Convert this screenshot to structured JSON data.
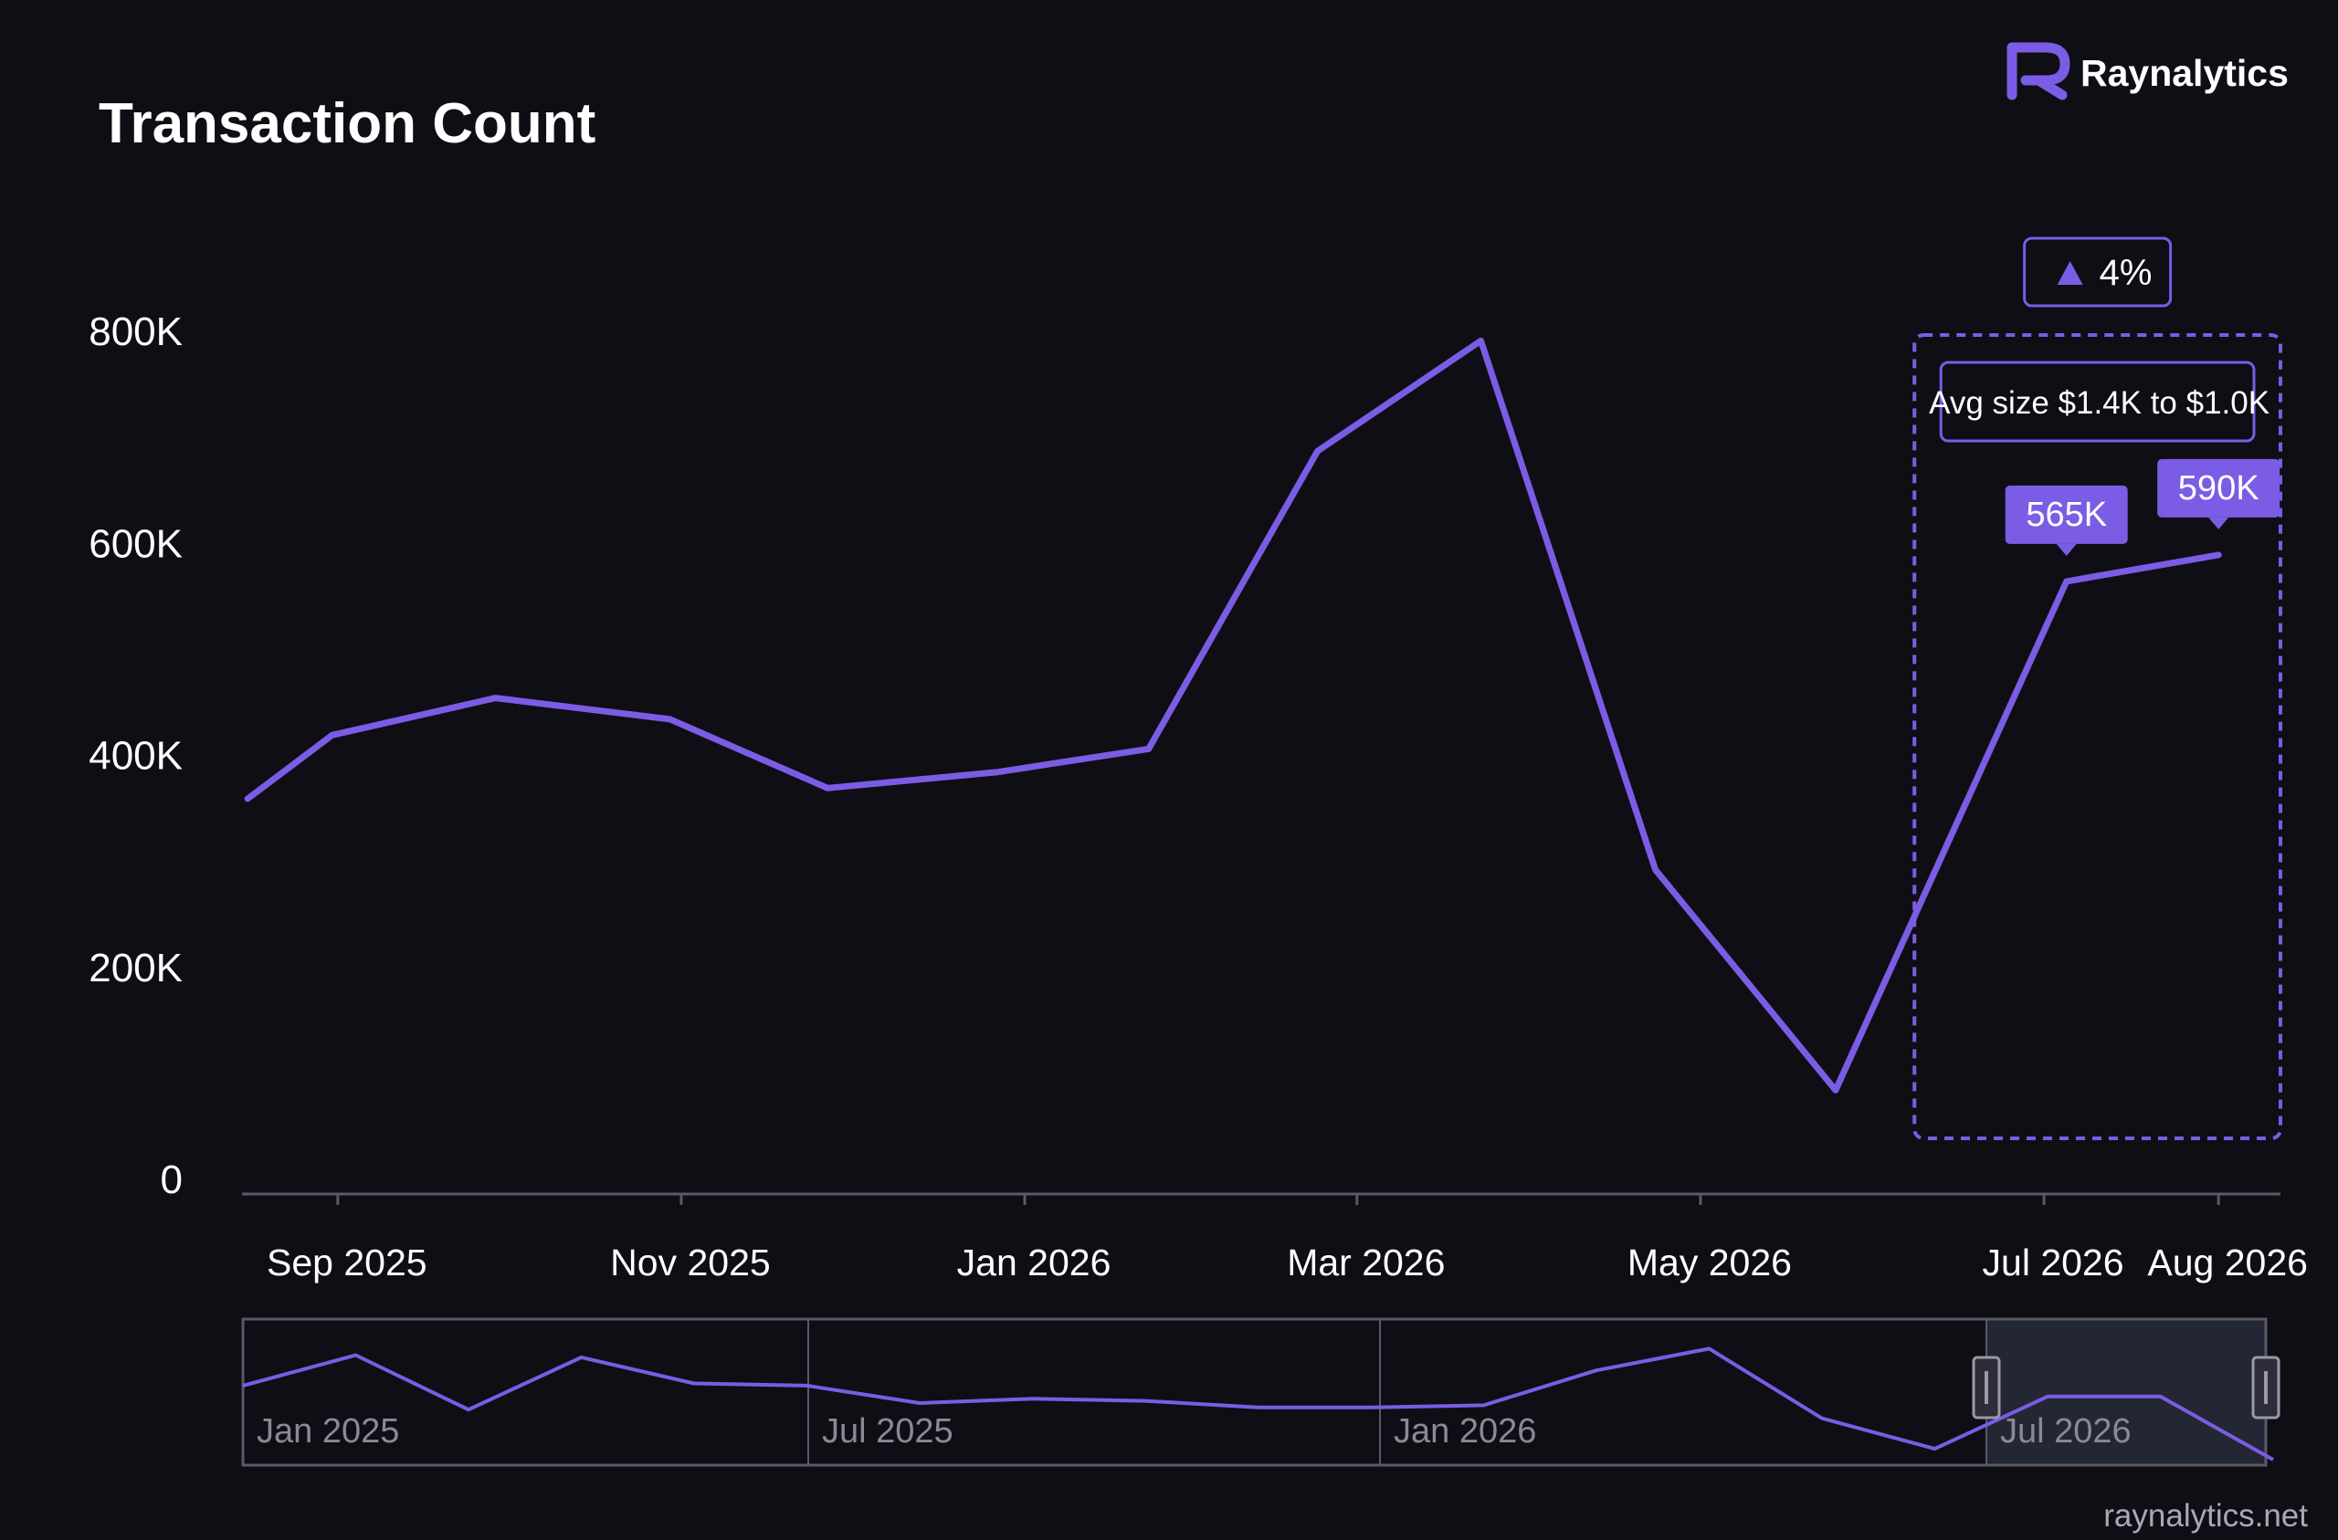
{
  "brand": {
    "name": "Raynalytics",
    "logo_icon": "r-logo-icon",
    "footer": "raynalytics.net"
  },
  "colors": {
    "background": "#0f0e15",
    "accent": "#7b5ce4",
    "text": "#ffffff",
    "axis": "#5a596a",
    "navigator_text": "#8a8998",
    "navigator_selection": "#262a36"
  },
  "chart_data": {
    "type": "line",
    "title": "Transaction Count",
    "xlabel": "",
    "ylabel": "",
    "ylim": [
      0,
      800000
    ],
    "y_ticks": [
      {
        "value": 0,
        "label": "0"
      },
      {
        "value": 200000,
        "label": "200K"
      },
      {
        "value": 400000,
        "label": "400K"
      },
      {
        "value": 600000,
        "label": "600K"
      },
      {
        "value": 800000,
        "label": "800K"
      }
    ],
    "x_ticks": [
      {
        "date": "2025-09-01",
        "label": "Sep 2025"
      },
      {
        "date": "2025-11-01",
        "label": "Nov 2025"
      },
      {
        "date": "2026-01-01",
        "label": "Jan 2026"
      },
      {
        "date": "2026-03-01",
        "label": "Mar 2026"
      },
      {
        "date": "2026-05-01",
        "label": "May 2026"
      },
      {
        "date": "2026-07-01",
        "label": "Jul 2026"
      },
      {
        "date": "2026-08-01",
        "label": "Aug 2026"
      }
    ],
    "x_range": [
      "2025-08-15",
      "2026-08-12"
    ],
    "grid": false,
    "series": [
      {
        "points": [
          {
            "date": "2025-08-16",
            "value": 360000
          },
          {
            "date": "2025-08-31",
            "value": 420000
          },
          {
            "date": "2025-09-29",
            "value": 455000
          },
          {
            "date": "2025-10-30",
            "value": 435000
          },
          {
            "date": "2025-11-27",
            "value": 370000
          },
          {
            "date": "2025-12-27",
            "value": 385000
          },
          {
            "date": "2026-01-23",
            "value": 407000
          },
          {
            "date": "2026-02-22",
            "value": 688000
          },
          {
            "date": "2026-03-23",
            "value": 792000
          },
          {
            "date": "2026-04-23",
            "value": 293000
          },
          {
            "date": "2026-05-25",
            "value": 85000
          },
          {
            "date": "2026-07-05",
            "value": 565000
          },
          {
            "date": "2026-08-01",
            "value": 590000
          }
        ]
      }
    ],
    "annotations": {
      "change_badge": {
        "icon": "triangle-up-icon",
        "text": "4%"
      },
      "highlight_range": [
        "2026-06-08",
        "2026-08-12"
      ],
      "highlight_note": "Avg size $1.4K to $1.0K",
      "point_labels": [
        {
          "date": "2026-07-05",
          "label": "565K"
        },
        {
          "date": "2026-08-01",
          "label": "590K"
        }
      ]
    },
    "navigator": {
      "labels": [
        "Jan 2025",
        "Jul 2025",
        "Jan 2026",
        "Jul 2026"
      ],
      "selected_range": [
        "2026-06-01",
        "2026-08-31"
      ],
      "series": [
        830,
        760,
        885,
        765,
        825,
        830,
        870,
        860,
        865,
        880,
        880,
        875,
        795,
        745,
        905,
        975,
        855,
        855,
        1000
      ]
    }
  }
}
